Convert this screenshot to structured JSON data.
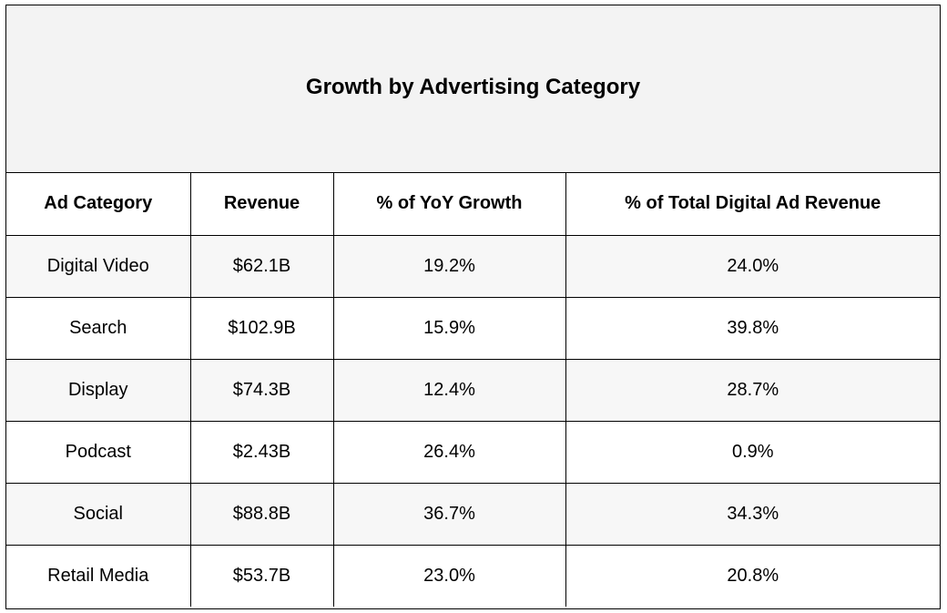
{
  "chart_data": {
    "type": "table",
    "title": "Growth by Advertising Category",
    "columns": [
      "Ad Category",
      "Revenue",
      "% of YoY Growth",
      "% of Total Digital Ad Revenue"
    ],
    "rows": [
      [
        "Digital Video",
        "$62.1B",
        "19.2%",
        "24.0%"
      ],
      [
        "Search",
        "$102.9B",
        "15.9%",
        "39.8%"
      ],
      [
        "Display",
        "$74.3B",
        "12.4%",
        "28.7%"
      ],
      [
        "Podcast",
        "$2.43B",
        "26.4%",
        "0.9%"
      ],
      [
        "Social",
        "$88.8B",
        "36.7%",
        "34.3%"
      ],
      [
        "Retail Media",
        "$53.7B",
        "23.0%",
        "20.8%"
      ]
    ]
  },
  "colors": {
    "title_background": "#f3f3f3",
    "odd_row_background": "#f7f7f7",
    "even_row_background": "#ffffff",
    "border": "#000000"
  }
}
